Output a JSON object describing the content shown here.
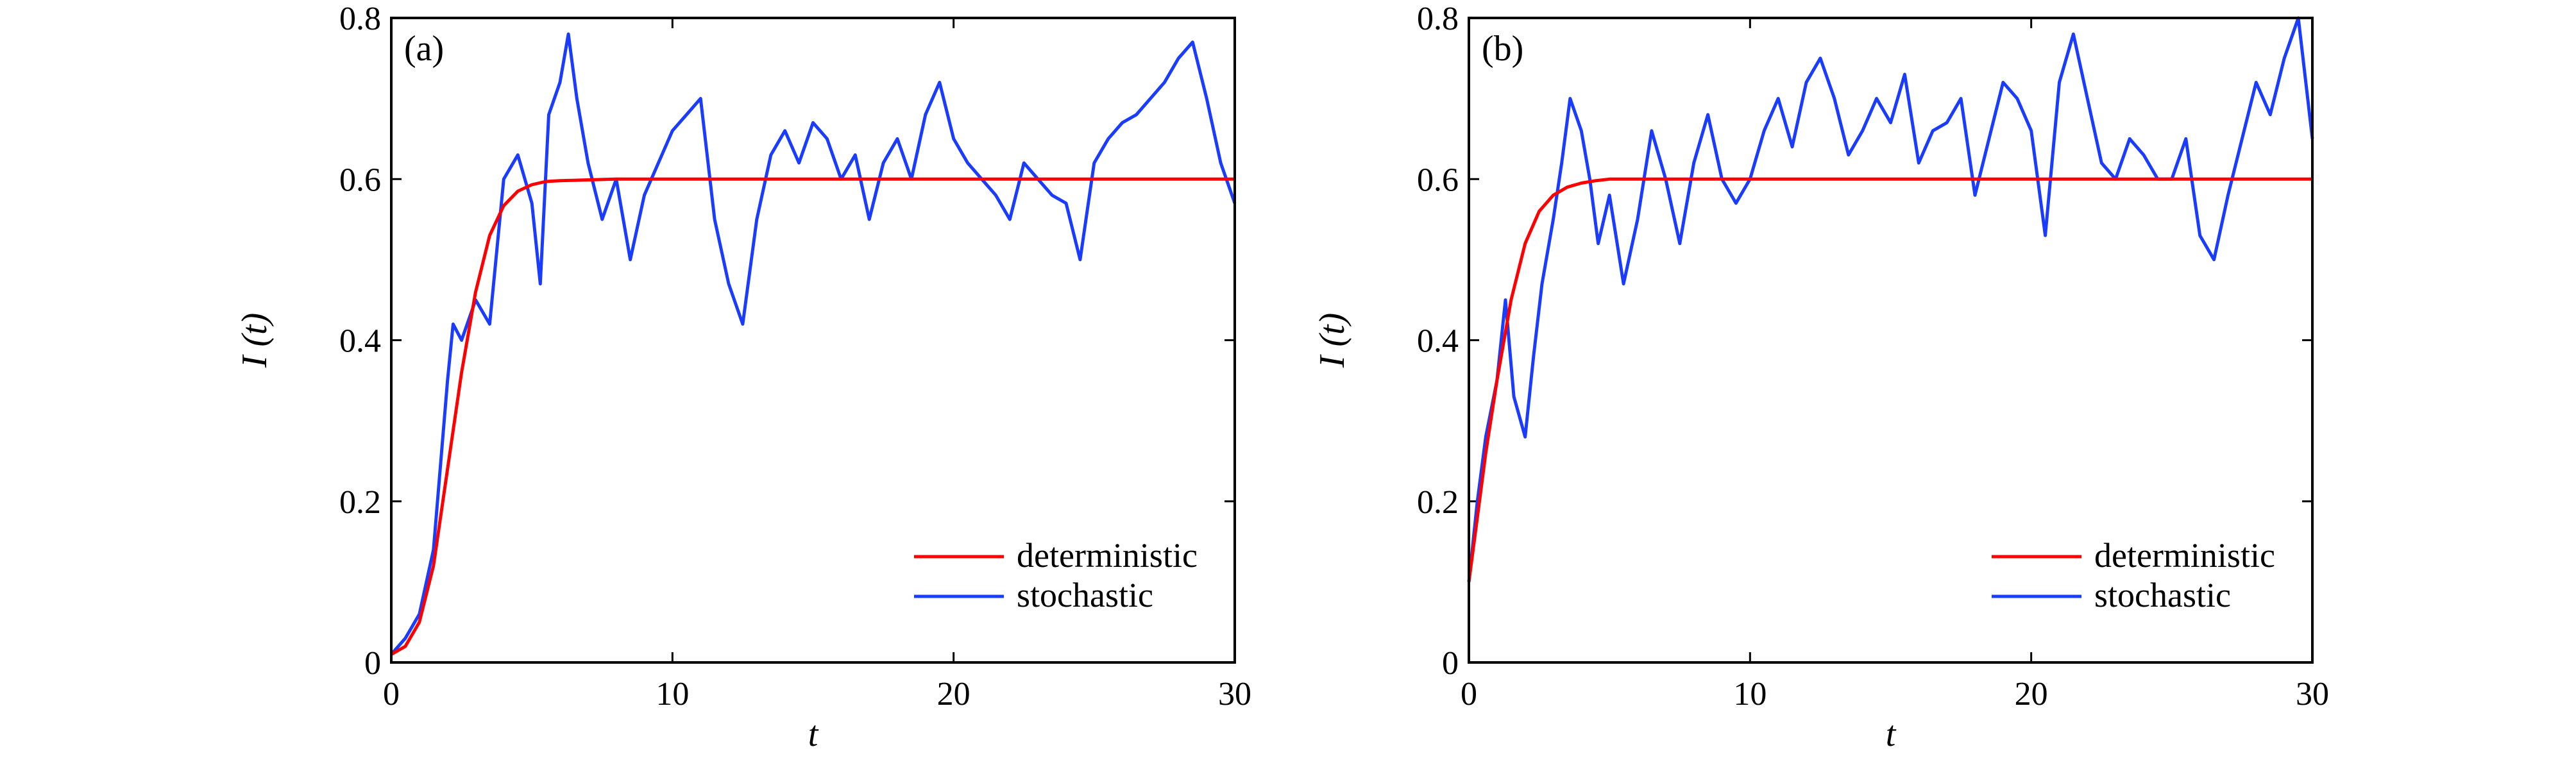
{
  "chart_data": [
    {
      "type": "line",
      "panel_label": "(a)",
      "xlabel": "t",
      "ylabel": "I (t)",
      "xlim": [
        0,
        30
      ],
      "ylim": [
        0,
        0.8
      ],
      "x_ticks": [
        "0",
        "10",
        "20",
        "30"
      ],
      "y_ticks": [
        "0",
        "0.2",
        "0.4",
        "0.6",
        "0.8"
      ],
      "grid": false,
      "legend_position": "bottom-right",
      "series": [
        {
          "name": "deterministic",
          "color": "#ff0000",
          "x": [
            0,
            0.5,
            1,
            1.5,
            2,
            2.5,
            3,
            3.5,
            4,
            4.5,
            5,
            5.5,
            6,
            7,
            8,
            10,
            15,
            20,
            25,
            30
          ],
          "y": [
            0.01,
            0.02,
            0.05,
            0.12,
            0.24,
            0.36,
            0.46,
            0.53,
            0.567,
            0.585,
            0.593,
            0.597,
            0.598,
            0.599,
            0.6,
            0.6,
            0.6,
            0.6,
            0.6,
            0.6
          ]
        },
        {
          "name": "stochastic",
          "color": "#1a3cff",
          "x": [
            0,
            0.5,
            1,
            1.5,
            2,
            2.2,
            2.5,
            3,
            3.5,
            4,
            4.5,
            5,
            5.3,
            5.6,
            6,
            6.3,
            6.6,
            7,
            7.5,
            8,
            8.5,
            9,
            9.5,
            10,
            10.5,
            11,
            11.5,
            12,
            12.5,
            13,
            13.5,
            14,
            14.5,
            15,
            15.5,
            16,
            16.5,
            17,
            17.5,
            18,
            18.5,
            19,
            19.5,
            20,
            20.5,
            21,
            21.5,
            22,
            22.5,
            23,
            23.5,
            24,
            24.5,
            25,
            25.5,
            26,
            26.5,
            27,
            27.5,
            28,
            28.5,
            29,
            29.5,
            30
          ],
          "y": [
            0.01,
            0.03,
            0.06,
            0.14,
            0.35,
            0.42,
            0.4,
            0.45,
            0.42,
            0.6,
            0.63,
            0.57,
            0.47,
            0.68,
            0.72,
            0.78,
            0.7,
            0.62,
            0.55,
            0.6,
            0.5,
            0.58,
            0.62,
            0.66,
            0.68,
            0.7,
            0.55,
            0.47,
            0.42,
            0.55,
            0.63,
            0.66,
            0.62,
            0.67,
            0.65,
            0.6,
            0.63,
            0.55,
            0.62,
            0.65,
            0.6,
            0.68,
            0.72,
            0.65,
            0.62,
            0.6,
            0.58,
            0.55,
            0.62,
            0.6,
            0.58,
            0.57,
            0.5,
            0.62,
            0.65,
            0.67,
            0.68,
            0.7,
            0.72,
            0.75,
            0.77,
            0.7,
            0.62,
            0.57
          ]
        }
      ]
    },
    {
      "type": "line",
      "panel_label": "(b)",
      "xlabel": "t",
      "ylabel": "I (t)",
      "xlim": [
        0,
        30
      ],
      "ylim": [
        0,
        0.8
      ],
      "x_ticks": [
        "0",
        "10",
        "20",
        "30"
      ],
      "y_ticks": [
        "0",
        "0.2",
        "0.4",
        "0.6",
        "0.8"
      ],
      "grid": false,
      "legend_position": "bottom-right",
      "series": [
        {
          "name": "deterministic",
          "color": "#ff0000",
          "x": [
            0,
            0.3,
            0.6,
            1,
            1.5,
            2,
            2.5,
            3,
            3.5,
            4,
            4.5,
            5,
            6,
            8,
            10,
            15,
            20,
            25,
            30
          ],
          "y": [
            0.1,
            0.18,
            0.26,
            0.35,
            0.45,
            0.52,
            0.56,
            0.58,
            0.59,
            0.595,
            0.598,
            0.6,
            0.6,
            0.6,
            0.6,
            0.6,
            0.6,
            0.6,
            0.6
          ]
        },
        {
          "name": "stochastic",
          "color": "#1a3cff",
          "x": [
            0,
            0.3,
            0.6,
            1,
            1.3,
            1.6,
            2,
            2.3,
            2.6,
            3,
            3.3,
            3.6,
            4,
            4.3,
            4.6,
            5,
            5.5,
            6,
            6.5,
            7,
            7.5,
            8,
            8.5,
            9,
            9.5,
            10,
            10.5,
            11,
            11.5,
            12,
            12.5,
            13,
            13.5,
            14,
            14.5,
            15,
            15.5,
            16,
            16.5,
            17,
            17.5,
            18,
            18.5,
            19,
            19.5,
            20,
            20.5,
            21,
            21.5,
            22,
            22.5,
            23,
            23.5,
            24,
            24.5,
            25,
            25.5,
            26,
            26.5,
            27,
            27.5,
            28,
            28.5,
            29,
            29.5,
            30
          ],
          "y": [
            0.1,
            0.2,
            0.28,
            0.35,
            0.45,
            0.33,
            0.28,
            0.38,
            0.47,
            0.55,
            0.62,
            0.7,
            0.66,
            0.6,
            0.52,
            0.58,
            0.47,
            0.55,
            0.66,
            0.6,
            0.52,
            0.62,
            0.68,
            0.6,
            0.57,
            0.6,
            0.66,
            0.7,
            0.64,
            0.72,
            0.75,
            0.7,
            0.63,
            0.66,
            0.7,
            0.67,
            0.73,
            0.62,
            0.66,
            0.67,
            0.7,
            0.58,
            0.65,
            0.72,
            0.7,
            0.66,
            0.53,
            0.72,
            0.78,
            0.7,
            0.62,
            0.6,
            0.65,
            0.63,
            0.6,
            0.6,
            0.65,
            0.53,
            0.5,
            0.58,
            0.65,
            0.72,
            0.68,
            0.75,
            0.8,
            0.65
          ]
        }
      ]
    }
  ]
}
